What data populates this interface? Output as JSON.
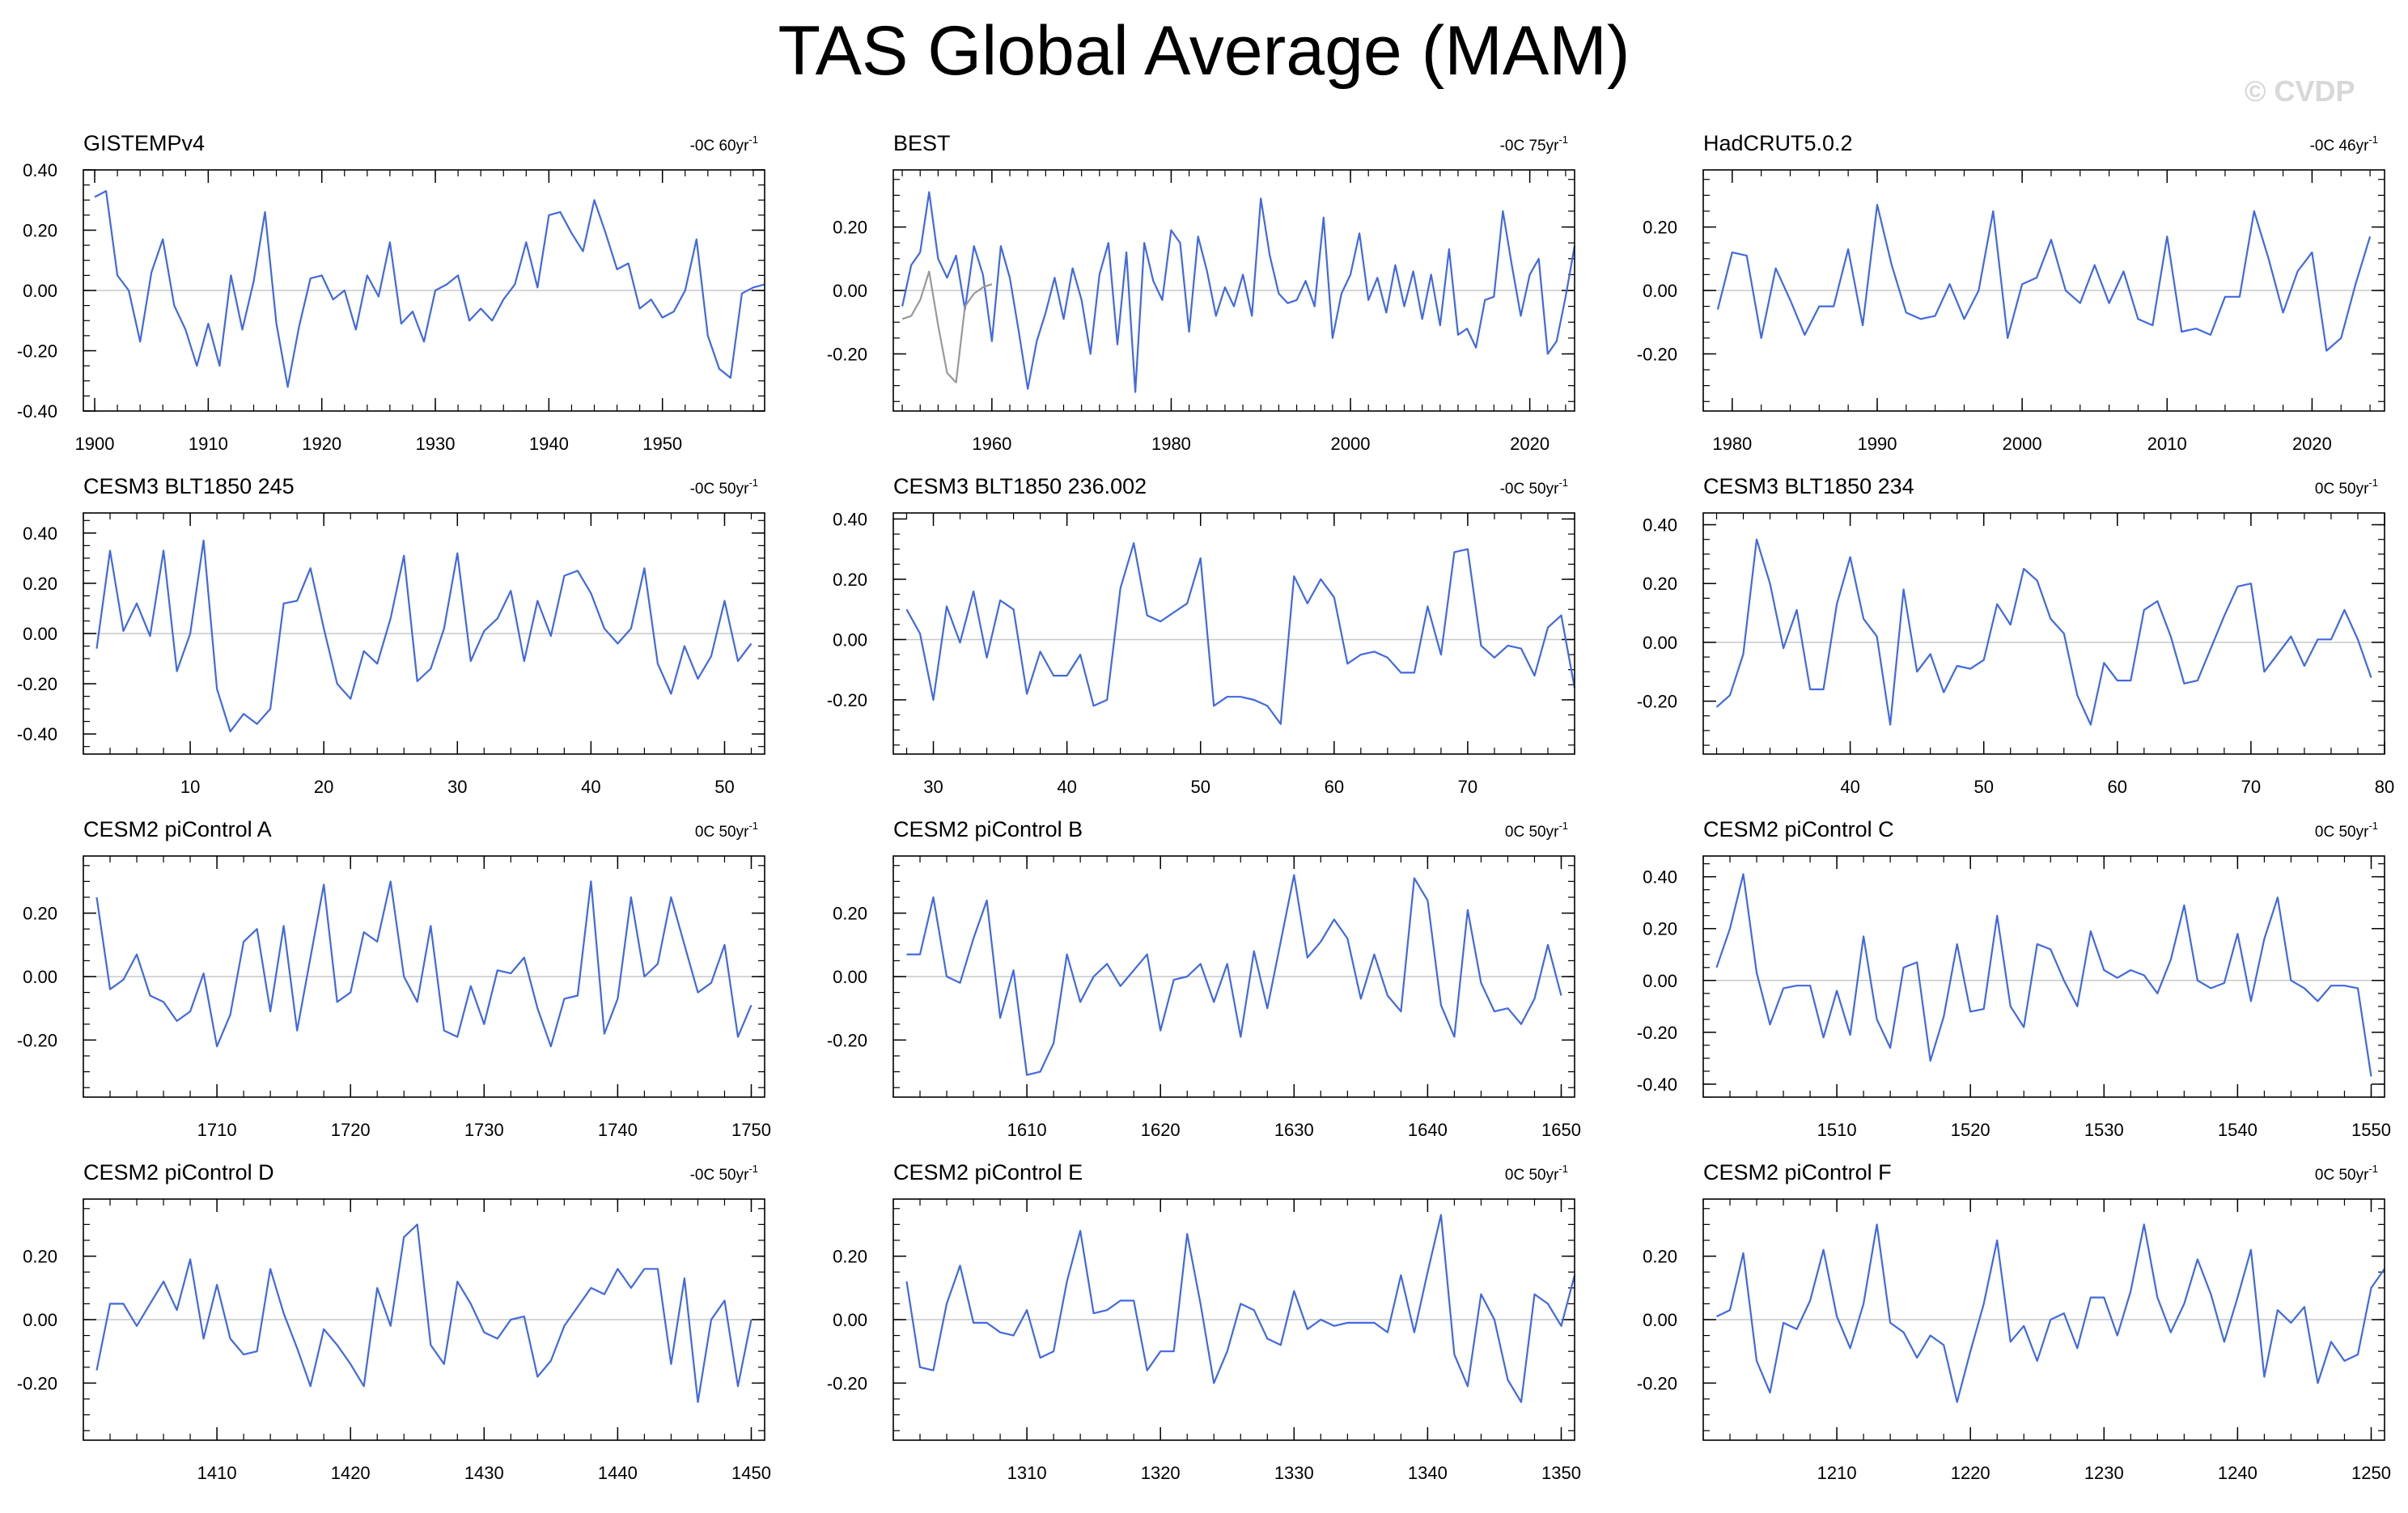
{
  "title": "TAS Global Average (MAM)",
  "watermark": "© CVDP",
  "colors": {
    "series": "#4169e1",
    "obs_alt": "#999999",
    "zero_line": "#c8c8c8",
    "axis": "#000000"
  },
  "chart_data": [
    {
      "type": "line",
      "title": "GISTEMPv4",
      "trend": "-0C 60yr",
      "xlim": [
        1899,
        1959
      ],
      "ylim": [
        -0.4,
        0.4
      ],
      "xticks": [
        1900,
        1910,
        1920,
        1930,
        1940,
        1950
      ],
      "yticks": [
        -0.4,
        -0.2,
        0,
        0.2,
        0.4
      ],
      "yticklabels": [
        "-0.40",
        "-0.20",
        "0.00",
        "0.20",
        "0.40"
      ],
      "series": [
        {
          "x0": 1900,
          "values": [
            0.31,
            0.33,
            0.05,
            0.0,
            -0.17,
            0.06,
            0.17,
            -0.05,
            -0.13,
            -0.25,
            -0.11,
            -0.25,
            0.05,
            -0.13,
            0.03,
            0.26,
            -0.11,
            -0.32,
            -0.12,
            0.04,
            0.05,
            -0.03,
            0.0,
            -0.13,
            0.05,
            -0.02,
            0.16,
            -0.11,
            -0.07,
            -0.17,
            0.0,
            0.02,
            0.05,
            -0.1,
            -0.06,
            -0.1,
            -0.03,
            0.02,
            0.16,
            0.01,
            0.25,
            0.26,
            0.19,
            0.13,
            0.3,
            0.19,
            0.07,
            0.09,
            -0.06,
            -0.03,
            -0.09,
            -0.07,
            0.0,
            0.17,
            -0.15,
            -0.26,
            -0.29,
            -0.01,
            0.01,
            0.02
          ]
        }
      ]
    },
    {
      "type": "line",
      "title": "BEST",
      "trend": "-0C 75yr",
      "xlim": [
        1949,
        2025
      ],
      "ylim": [
        -0.38,
        0.38
      ],
      "xticks": [
        1960,
        1980,
        2000,
        2020
      ],
      "yticks": [
        -0.2,
        0,
        0.2
      ],
      "yticklabels": [
        "-0.20",
        "0.00",
        "0.20"
      ],
      "series": [
        {
          "x0": 1950,
          "values": [
            -0.05,
            0.08,
            0.12,
            0.31,
            0.1,
            0.04,
            0.11,
            -0.06,
            0.14,
            0.05,
            -0.16,
            0.14,
            0.04,
            -0.13,
            -0.31,
            -0.16,
            -0.07,
            0.04,
            -0.09,
            0.07,
            -0.03,
            -0.2,
            0.05,
            0.15,
            -0.17,
            0.12,
            -0.32,
            0.15,
            0.03,
            -0.03,
            0.19,
            0.15,
            -0.13,
            0.17,
            0.06,
            -0.08,
            0.01,
            -0.05,
            0.05,
            -0.08,
            0.29,
            0.11,
            -0.01,
            -0.04,
            -0.03,
            0.03,
            -0.05,
            0.23,
            -0.15,
            -0.01,
            0.05,
            0.18,
            -0.03,
            0.04,
            -0.07,
            0.08,
            -0.05,
            0.06,
            -0.09,
            0.05,
            -0.11,
            0.13,
            -0.14,
            -0.12,
            -0.18,
            -0.03,
            -0.02,
            0.25,
            0.08,
            -0.08,
            0.05,
            0.1,
            -0.2,
            -0.16,
            -0.02,
            0.14
          ]
        },
        {
          "x0": 1950,
          "color": "obs_alt",
          "values": [
            -0.09,
            -0.08,
            -0.03,
            0.06,
            -0.11,
            -0.26,
            -0.29,
            -0.05,
            -0.01,
            0.01,
            0.02
          ]
        }
      ]
    },
    {
      "type": "line",
      "title": "HadCRUT5.0.2",
      "trend": "-0C 46yr",
      "xlim": [
        1978,
        2025
      ],
      "ylim": [
        -0.38,
        0.38
      ],
      "xticks": [
        1980,
        1990,
        2000,
        2010,
        2020
      ],
      "yticks": [
        -0.2,
        0,
        0.2
      ],
      "yticklabels": [
        "-0.20",
        "0.00",
        "0.20"
      ],
      "series": [
        {
          "x0": 1979,
          "values": [
            -0.06,
            0.12,
            0.11,
            -0.15,
            0.07,
            -0.03,
            -0.14,
            -0.05,
            -0.05,
            0.13,
            -0.11,
            0.27,
            0.08,
            -0.07,
            -0.09,
            -0.08,
            0.02,
            -0.09,
            0.0,
            0.25,
            -0.15,
            0.02,
            0.04,
            0.16,
            0.0,
            -0.04,
            0.08,
            -0.04,
            0.06,
            -0.09,
            -0.11,
            0.17,
            -0.13,
            -0.12,
            -0.14,
            -0.02,
            -0.02,
            0.25,
            0.1,
            -0.07,
            0.06,
            0.12,
            -0.19,
            -0.15,
            0.02,
            0.17
          ]
        }
      ]
    },
    {
      "type": "line",
      "title": "CESM3 BLT1850 245",
      "trend": "-0C 50yr",
      "xlim": [
        2,
        53
      ],
      "ylim": [
        -0.48,
        0.48
      ],
      "xticks": [
        10,
        20,
        30,
        40,
        50
      ],
      "yticks": [
        -0.4,
        -0.2,
        0,
        0.2,
        0.4
      ],
      "yticklabels": [
        "-0.40",
        "-0.20",
        "0.00",
        "0.20",
        "0.40"
      ],
      "series": [
        {
          "x0": 3,
          "values": [
            -0.06,
            0.33,
            0.01,
            0.12,
            -0.01,
            0.33,
            -0.15,
            0.0,
            0.37,
            -0.22,
            -0.39,
            -0.32,
            -0.36,
            -0.3,
            0.12,
            0.13,
            0.26,
            0.02,
            -0.2,
            -0.26,
            -0.07,
            -0.12,
            0.06,
            0.31,
            -0.19,
            -0.14,
            0.02,
            0.32,
            -0.11,
            0.01,
            0.06,
            0.17,
            -0.11,
            0.13,
            -0.01,
            0.23,
            0.25,
            0.16,
            0.02,
            -0.04,
            0.02,
            0.26,
            -0.12,
            -0.24,
            -0.05,
            -0.18,
            -0.09,
            0.13,
            -0.11,
            -0.04
          ]
        }
      ]
    },
    {
      "type": "line",
      "title": "CESM3 BLT1850 236.002",
      "trend": "-0C 50yr",
      "xlim": [
        27,
        78
      ],
      "ylim": [
        -0.38,
        0.42
      ],
      "xticks": [
        30,
        40,
        50,
        60,
        70
      ],
      "yticks": [
        -0.2,
        0,
        0.2,
        0.4
      ],
      "yticklabels": [
        "-0.20",
        "0.00",
        "0.20",
        "0.40"
      ],
      "series": [
        {
          "x0": 28,
          "values": [
            0.1,
            0.02,
            -0.2,
            0.11,
            -0.01,
            0.16,
            -0.06,
            0.13,
            0.1,
            -0.18,
            -0.04,
            -0.12,
            -0.12,
            -0.05,
            -0.22,
            -0.2,
            0.17,
            0.32,
            0.08,
            0.06,
            0.09,
            0.12,
            0.27,
            -0.22,
            -0.19,
            -0.19,
            -0.2,
            -0.22,
            -0.28,
            0.21,
            0.12,
            0.2,
            0.14,
            -0.08,
            -0.05,
            -0.04,
            -0.06,
            -0.11,
            -0.11,
            0.11,
            -0.05,
            0.29,
            0.3,
            -0.02,
            -0.06,
            -0.02,
            -0.03,
            -0.12,
            0.04,
            0.08,
            -0.16
          ]
        }
      ]
    },
    {
      "type": "line",
      "title": "CESM3 BLT1850 234",
      "trend": "0C 50yr",
      "xlim": [
        29,
        80
      ],
      "ylim": [
        -0.38,
        0.44
      ],
      "xticks": [
        40,
        50,
        60,
        70,
        80
      ],
      "yticks": [
        -0.2,
        0,
        0.2,
        0.4
      ],
      "yticklabels": [
        "-0.20",
        "0.00",
        "0.20",
        "0.40"
      ],
      "series": [
        {
          "x0": 30,
          "values": [
            -0.22,
            -0.18,
            -0.04,
            0.35,
            0.2,
            -0.02,
            0.11,
            -0.16,
            -0.16,
            0.13,
            0.29,
            0.08,
            0.02,
            -0.28,
            0.18,
            -0.1,
            -0.04,
            -0.17,
            -0.08,
            -0.09,
            -0.06,
            0.13,
            0.06,
            0.25,
            0.21,
            0.08,
            0.03,
            -0.18,
            -0.28,
            -0.07,
            -0.13,
            -0.13,
            0.11,
            0.14,
            0.02,
            -0.14,
            -0.13,
            -0.02,
            0.09,
            0.19,
            0.2,
            -0.1,
            -0.04,
            0.02,
            -0.08,
            0.01,
            0.01,
            0.11,
            0.01,
            -0.12
          ]
        }
      ]
    },
    {
      "type": "line",
      "title": "CESM2 piControl A",
      "trend": "0C 50yr",
      "xlim": [
        1700,
        1751
      ],
      "ylim": [
        -0.38,
        0.38
      ],
      "xticks": [
        1710,
        1720,
        1730,
        1740,
        1750
      ],
      "yticks": [
        -0.2,
        0,
        0.2
      ],
      "yticklabels": [
        "-0.20",
        "0.00",
        "0.20"
      ],
      "series": [
        {
          "x0": 1701,
          "values": [
            0.25,
            -0.04,
            -0.01,
            0.07,
            -0.06,
            -0.08,
            -0.14,
            -0.11,
            0.01,
            -0.22,
            -0.12,
            0.11,
            0.15,
            -0.11,
            0.16,
            -0.17,
            0.06,
            0.29,
            -0.08,
            -0.05,
            0.14,
            0.11,
            0.3,
            0.0,
            -0.08,
            0.16,
            -0.17,
            -0.19,
            -0.03,
            -0.15,
            0.02,
            0.01,
            0.06,
            -0.1,
            -0.22,
            -0.07,
            -0.06,
            0.3,
            -0.18,
            -0.07,
            0.25,
            0.0,
            0.04,
            0.25,
            0.1,
            -0.05,
            -0.02,
            0.1,
            -0.19,
            -0.09
          ]
        }
      ]
    },
    {
      "type": "line",
      "title": "CESM2 piControl B",
      "trend": "0C 50yr",
      "xlim": [
        1600,
        1651
      ],
      "ylim": [
        -0.38,
        0.38
      ],
      "xticks": [
        1610,
        1620,
        1630,
        1640,
        1650
      ],
      "yticks": [
        -0.2,
        0,
        0.2
      ],
      "yticklabels": [
        "-0.20",
        "0.00",
        "0.20"
      ],
      "series": [
        {
          "x0": 1601,
          "values": [
            0.07,
            0.07,
            0.25,
            0.0,
            -0.02,
            0.12,
            0.24,
            -0.13,
            0.02,
            -0.31,
            -0.3,
            -0.21,
            0.07,
            -0.08,
            0.0,
            0.04,
            -0.03,
            0.02,
            0.07,
            -0.17,
            -0.01,
            0.0,
            0.04,
            -0.08,
            0.04,
            -0.19,
            0.08,
            -0.1,
            0.11,
            0.32,
            0.06,
            0.11,
            0.18,
            0.12,
            -0.07,
            0.07,
            -0.06,
            -0.11,
            0.31,
            0.24,
            -0.09,
            -0.19,
            0.21,
            -0.02,
            -0.11,
            -0.1,
            -0.15,
            -0.07,
            0.1,
            -0.06
          ]
        }
      ]
    },
    {
      "type": "line",
      "title": "CESM2 piControl C",
      "trend": "0C 50yr",
      "xlim": [
        1500,
        1551
      ],
      "ylim": [
        -0.45,
        0.48
      ],
      "xticks": [
        1510,
        1520,
        1530,
        1540,
        1550
      ],
      "yticks": [
        -0.4,
        -0.2,
        0,
        0.2,
        0.4
      ],
      "yticklabels": [
        "-0.40",
        "-0.20",
        "0.00",
        "0.20",
        "0.40"
      ],
      "series": [
        {
          "x0": 1501,
          "values": [
            0.05,
            0.2,
            0.41,
            0.03,
            -0.17,
            -0.03,
            -0.02,
            -0.02,
            -0.22,
            -0.04,
            -0.21,
            0.17,
            -0.15,
            -0.26,
            0.05,
            0.07,
            -0.31,
            -0.14,
            0.14,
            -0.12,
            -0.11,
            0.25,
            -0.1,
            -0.18,
            0.14,
            0.12,
            0.0,
            -0.1,
            0.19,
            0.04,
            0.01,
            0.04,
            0.02,
            -0.05,
            0.08,
            0.29,
            0.0,
            -0.03,
            -0.01,
            0.18,
            -0.08,
            0.16,
            0.32,
            0.0,
            -0.03,
            -0.08,
            -0.02,
            -0.02,
            -0.03,
            -0.37
          ]
        }
      ]
    },
    {
      "type": "line",
      "title": "CESM2 piControl D",
      "trend": "-0C 50yr",
      "xlim": [
        1400,
        1451
      ],
      "ylim": [
        -0.38,
        0.38
      ],
      "xticks": [
        1410,
        1420,
        1430,
        1440,
        1450
      ],
      "yticks": [
        -0.2,
        0,
        0.2
      ],
      "yticklabels": [
        "-0.20",
        "0.00",
        "0.20"
      ],
      "series": [
        {
          "x0": 1401,
          "values": [
            -0.16,
            0.05,
            0.05,
            -0.02,
            0.05,
            0.12,
            0.03,
            0.19,
            -0.06,
            0.11,
            -0.06,
            -0.11,
            -0.1,
            0.16,
            0.02,
            -0.09,
            -0.21,
            -0.03,
            -0.08,
            -0.14,
            -0.21,
            0.1,
            -0.02,
            0.26,
            0.3,
            -0.08,
            -0.14,
            0.12,
            0.05,
            -0.04,
            -0.06,
            0.0,
            0.01,
            -0.18,
            -0.13,
            -0.02,
            0.04,
            0.1,
            0.08,
            0.16,
            0.1,
            0.16,
            0.16,
            -0.14,
            0.13,
            -0.26,
            0.0,
            0.06,
            -0.21,
            0.0
          ]
        }
      ]
    },
    {
      "type": "line",
      "title": "CESM2 piControl E",
      "trend": "0C 50yr",
      "xlim": [
        1300,
        1351
      ],
      "ylim": [
        -0.38,
        0.38
      ],
      "xticks": [
        1310,
        1320,
        1330,
        1340,
        1350
      ],
      "yticks": [
        -0.2,
        0,
        0.2
      ],
      "yticklabels": [
        "-0.20",
        "0.00",
        "0.20"
      ],
      "series": [
        {
          "x0": 1301,
          "values": [
            0.12,
            -0.15,
            -0.16,
            0.05,
            0.17,
            -0.01,
            -0.01,
            -0.04,
            -0.05,
            0.03,
            -0.12,
            -0.1,
            0.12,
            0.28,
            0.02,
            0.03,
            0.06,
            0.06,
            -0.16,
            -0.1,
            -0.1,
            0.27,
            0.05,
            -0.2,
            -0.1,
            0.05,
            0.03,
            -0.06,
            -0.08,
            0.09,
            -0.03,
            0.0,
            -0.02,
            -0.01,
            -0.01,
            -0.01,
            -0.04,
            0.14,
            -0.04,
            0.15,
            0.33,
            -0.11,
            -0.21,
            0.08,
            0.0,
            -0.19,
            -0.26,
            0.08,
            0.05,
            -0.02,
            0.14
          ]
        }
      ]
    },
    {
      "type": "line",
      "title": "CESM2 piControl F",
      "trend": "0C 50yr",
      "xlim": [
        1200,
        1251
      ],
      "ylim": [
        -0.38,
        0.38
      ],
      "xticks": [
        1210,
        1220,
        1230,
        1240,
        1250
      ],
      "yticks": [
        -0.2,
        0,
        0.2
      ],
      "yticklabels": [
        "-0.20",
        "0.00",
        "0.20"
      ],
      "series": [
        {
          "x0": 1201,
          "values": [
            0.01,
            0.03,
            0.21,
            -0.13,
            -0.23,
            -0.01,
            -0.03,
            0.06,
            0.22,
            0.01,
            -0.09,
            0.05,
            0.3,
            -0.01,
            -0.04,
            -0.12,
            -0.05,
            -0.08,
            -0.26,
            -0.1,
            0.05,
            0.25,
            -0.07,
            -0.02,
            -0.13,
            0.0,
            0.02,
            -0.09,
            0.07,
            0.07,
            -0.05,
            0.09,
            0.3,
            0.07,
            -0.04,
            0.05,
            0.19,
            0.08,
            -0.07,
            0.07,
            0.22,
            -0.18,
            0.03,
            -0.01,
            0.04,
            -0.2,
            -0.07,
            -0.13,
            -0.11,
            0.1,
            0.16
          ]
        }
      ]
    }
  ]
}
